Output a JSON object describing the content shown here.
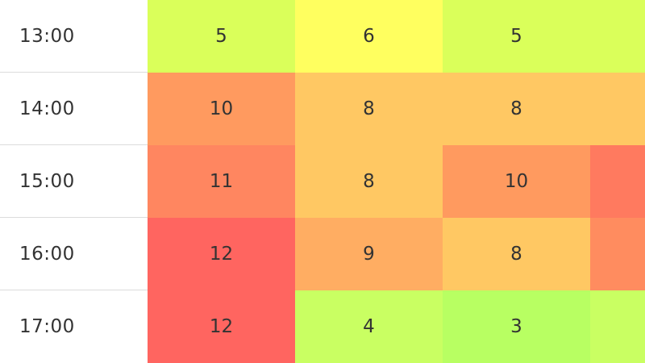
{
  "chart_data": {
    "type": "heatmap",
    "rows": [
      {
        "label": "13:00",
        "values": [
          5,
          6,
          5,
          null
        ],
        "colors": [
          "#daff5a",
          "#ffff5f",
          "#daff5a",
          "#daff5a"
        ]
      },
      {
        "label": "14:00",
        "values": [
          10,
          8,
          8,
          null
        ],
        "colors": [
          "#ff9a5f",
          "#ffc863",
          "#ffc863",
          "#ffc863"
        ]
      },
      {
        "label": "15:00",
        "values": [
          11,
          8,
          10,
          null
        ],
        "colors": [
          "#ff8660",
          "#ffc863",
          "#ff9a5f",
          "#ff7a5f"
        ]
      },
      {
        "label": "16:00",
        "values": [
          12,
          9,
          8,
          null
        ],
        "colors": [
          "#ff6560",
          "#ffad62",
          "#ffc863",
          "#ff8c5f"
        ]
      },
      {
        "label": "17:00",
        "values": [
          12,
          4,
          3,
          null
        ],
        "colors": [
          "#ff6560",
          "#c9ff62",
          "#b8ff62",
          "#c9ff62"
        ]
      }
    ]
  }
}
